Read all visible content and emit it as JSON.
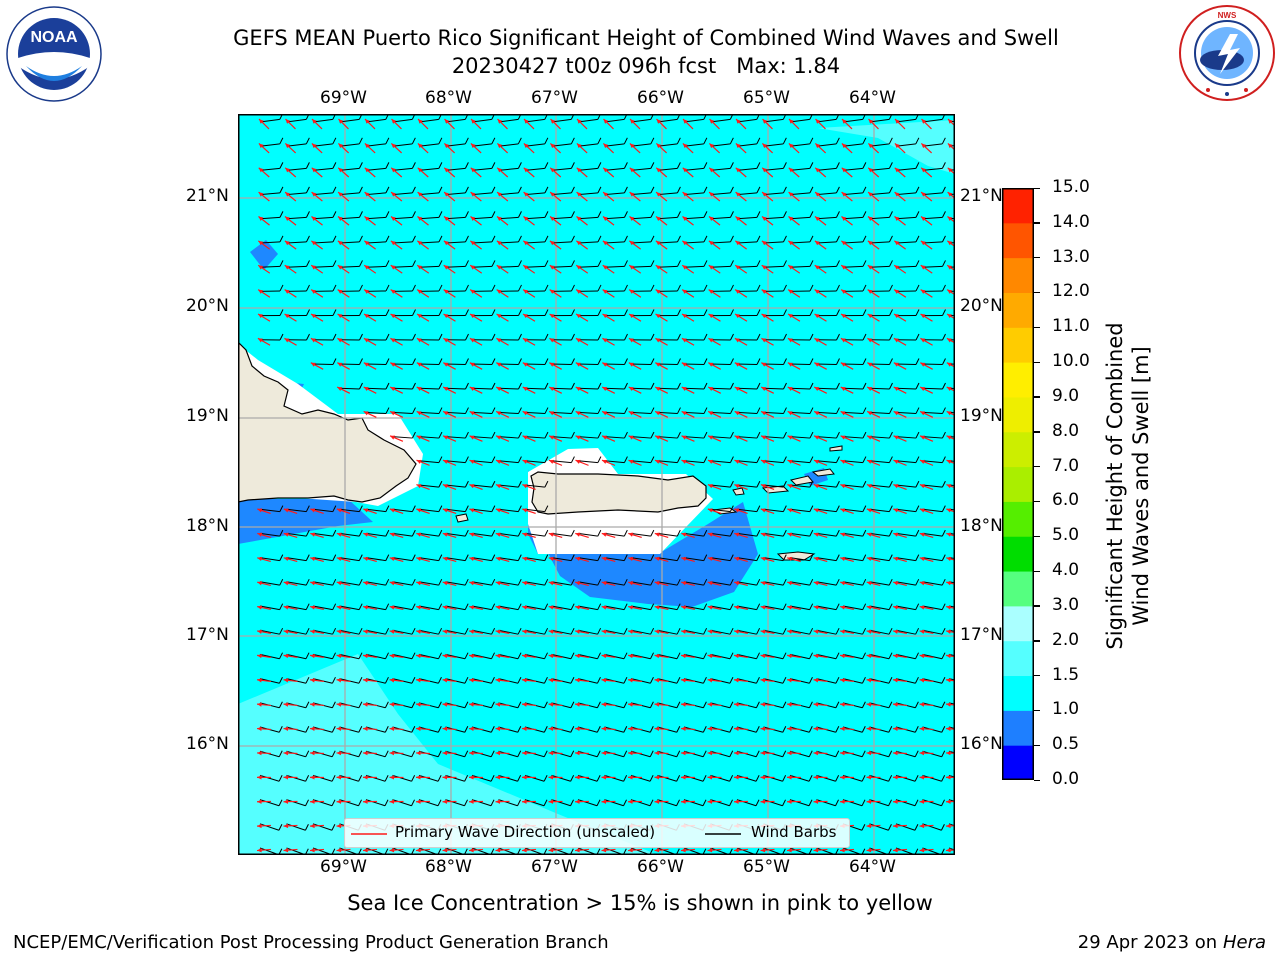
{
  "title": {
    "line1": "GEFS MEAN Puerto Rico Significant Height of Combined Wind Waves and Swell",
    "line2": "20230427 t00z 096h fcst   Max: 1.84"
  },
  "logos": {
    "left_text": "NOAA",
    "left_ring": "NATIONAL OCEANIC AND ATMOSPHERIC ADMINISTRATION · U.S. DEPARTMENT OF COMMERCE",
    "right_ring": "NATIONAL WEATHER SERVICE"
  },
  "map": {
    "lon_labels": [
      "69°W",
      "68°W",
      "67°W",
      "66°W",
      "65°W",
      "64°W"
    ],
    "lat_labels": [
      "21°N",
      "20°N",
      "19°N",
      "18°N",
      "17°N",
      "16°N"
    ],
    "colors": {
      "ocean": "#00ffff",
      "swell_light": "#55ffff",
      "deep": "#1e88ff",
      "land": "#eeeadb",
      "wave_arrow": "#ff1a1a",
      "barb": "#000000"
    }
  },
  "legend": {
    "wave_label": "Primary Wave Direction (unscaled)",
    "barb_label": "Wind Barbs"
  },
  "colorbar": {
    "label_line1": "Significant Height of Combined",
    "label_line2": "Wind Waves and Swell [m]",
    "ticks": [
      "15.0",
      "14.0",
      "13.0",
      "12.0",
      "11.0",
      "10.0",
      "9.0",
      "8.0",
      "7.0",
      "6.0",
      "5.0",
      "4.0",
      "3.0",
      "2.0",
      "1.5",
      "1.0",
      "0.5",
      "0.0"
    ],
    "colors": [
      "#0000ff",
      "#1e7fff",
      "#00ffff",
      "#55ffff",
      "#aaffff",
      "#55ff80",
      "#00dd00",
      "#55ee00",
      "#aaee00",
      "#ccee00",
      "#eeee00",
      "#ffee00",
      "#ffcc00",
      "#ffaa00",
      "#ff8800",
      "#ff5500",
      "#ff2200"
    ]
  },
  "caption": "Sea Ice Concentration > 15% is shown in pink to yellow",
  "footer": {
    "left": "NCEP/EMC/Verification Post Processing Product Generation Branch",
    "right_prefix": "29 Apr 2023 on ",
    "right_machine": "Hera"
  }
}
